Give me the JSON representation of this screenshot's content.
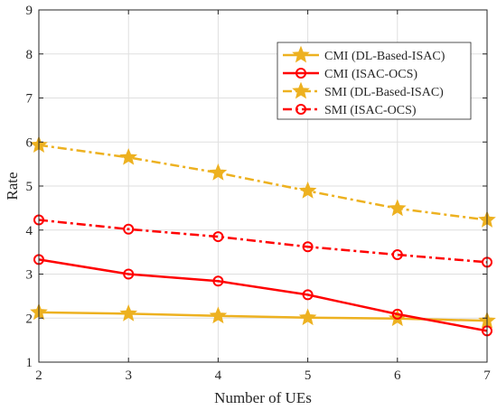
{
  "chart_data": {
    "type": "line",
    "title": "",
    "xlabel": "Number of UEs",
    "ylabel": "Rate",
    "xlim": [
      2,
      7
    ],
    "ylim": [
      1,
      9
    ],
    "x": [
      2,
      3,
      4,
      5,
      6,
      7
    ],
    "xticks": [
      "2",
      "3",
      "4",
      "5",
      "6",
      "7"
    ],
    "yticks": [
      "1",
      "2",
      "3",
      "4",
      "5",
      "6",
      "7",
      "8",
      "9"
    ],
    "grid": true,
    "legend_position": "top-right",
    "series": [
      {
        "name": "CMI (DL-Based-ISAC)",
        "values": [
          2.13,
          2.1,
          2.05,
          2.01,
          1.99,
          1.94
        ],
        "color": "#EDB120",
        "line": "solid",
        "marker": "star"
      },
      {
        "name": "CMI (ISAC-OCS)",
        "values": [
          3.33,
          3.0,
          2.84,
          2.53,
          2.09,
          1.71
        ],
        "color": "#FF0000",
        "line": "solid",
        "marker": "circle"
      },
      {
        "name": "SMI (DL-Based-ISAC)",
        "values": [
          5.93,
          5.65,
          5.3,
          4.89,
          4.49,
          4.23
        ],
        "color": "#EDB120",
        "line": "dashdot",
        "marker": "star"
      },
      {
        "name": "SMI (ISAC-OCS)",
        "values": [
          4.23,
          4.02,
          3.85,
          3.62,
          3.44,
          3.27
        ],
        "color": "#FF0000",
        "line": "dashdot",
        "marker": "circle"
      }
    ]
  }
}
